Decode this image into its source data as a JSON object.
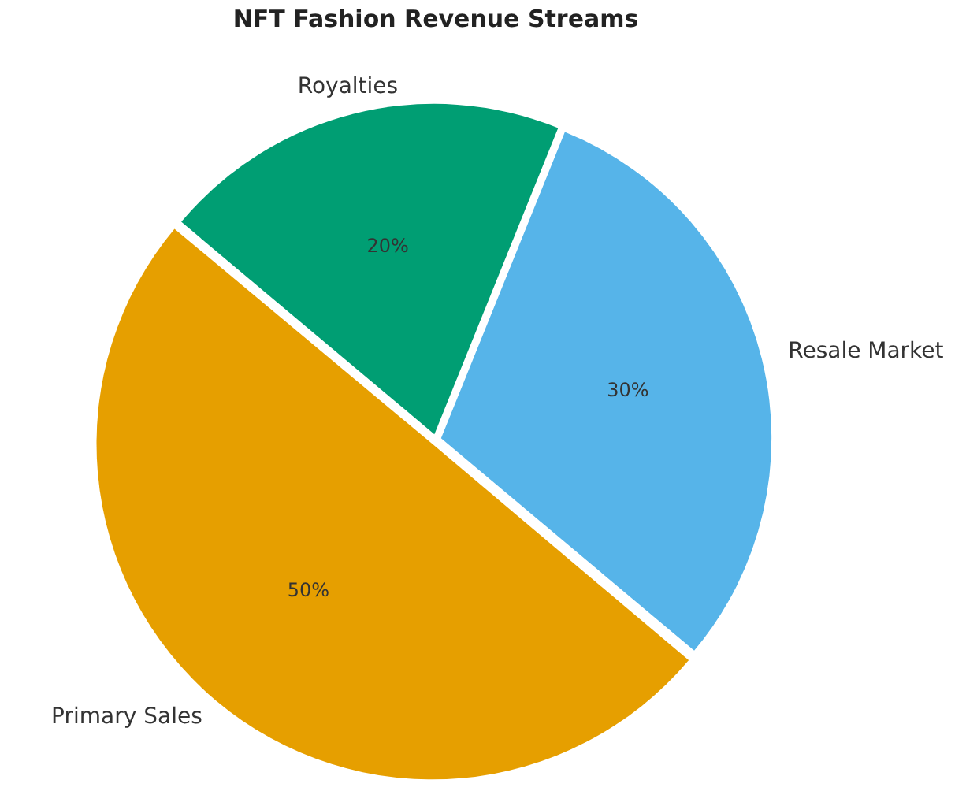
{
  "chart_data": {
    "type": "pie",
    "title": "NFT Fashion Revenue Streams",
    "categories": [
      "Royalties",
      "Resale Market",
      "Primary Sales"
    ],
    "values": [
      20,
      30,
      50
    ],
    "colors": [
      "#009e73",
      "#56b4e9",
      "#e69f00"
    ],
    "value_labels": [
      "20%",
      "30%",
      "50%"
    ],
    "legend": false
  }
}
